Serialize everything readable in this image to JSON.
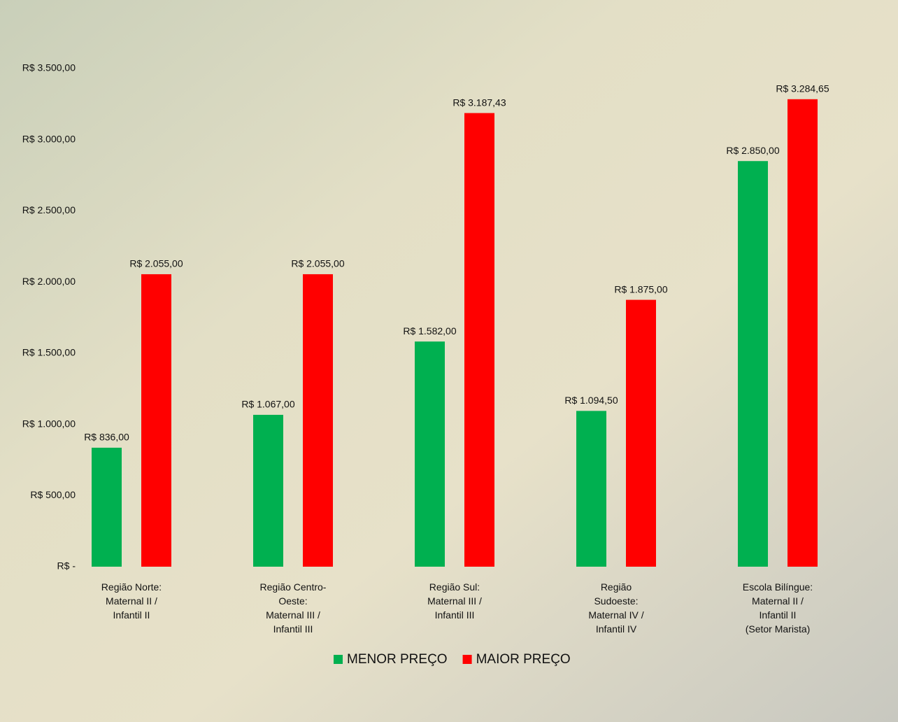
{
  "chart_data": {
    "type": "bar",
    "categories": [
      "Região Norte:\nMaternal II /\nInfantil II",
      "Região Centro-\nOeste:\nMaternal III /\nInfantil III",
      "Região Sul:\nMaternal III /\nInfantil III",
      "Região\nSudoeste:\nMaternal IV /\nInfantil IV",
      "Escola Bilíngue:\nMaternal II /\nInfantil II\n(Setor Marista)"
    ],
    "series": [
      {
        "name": "MENOR PREÇO",
        "color": "#00b050",
        "values": [
          836,
          1067,
          1582,
          1094.5,
          2850
        ],
        "value_labels": [
          "R$ 836,00",
          "R$ 1.067,00",
          "R$ 1.582,00",
          "R$ 1.094,50",
          "R$ 2.850,00"
        ]
      },
      {
        "name": "MAIOR PREÇO",
        "color": "#ff0000",
        "values": [
          2055,
          2055,
          3187.43,
          1875,
          3284.65
        ],
        "value_labels": [
          "R$ 2.055,00",
          "R$ 2.055,00",
          "R$ 3.187,43",
          "R$ 1.875,00",
          "R$ 3.284,65"
        ]
      }
    ],
    "ylim": [
      0,
      3500
    ],
    "yticks": [
      {
        "value": 0,
        "label": "R$ -"
      },
      {
        "value": 500,
        "label": "R$ 500,00"
      },
      {
        "value": 1000,
        "label": "R$ 1.000,00"
      },
      {
        "value": 1500,
        "label": "R$ 1.500,00"
      },
      {
        "value": 2000,
        "label": "R$ 2.000,00"
      },
      {
        "value": 2500,
        "label": "R$ 2.500,00"
      },
      {
        "value": 3000,
        "label": "R$ 3.000,00"
      },
      {
        "value": 3500,
        "label": "R$ 3.500,00"
      }
    ],
    "grid": false,
    "legend": "bottom"
  }
}
